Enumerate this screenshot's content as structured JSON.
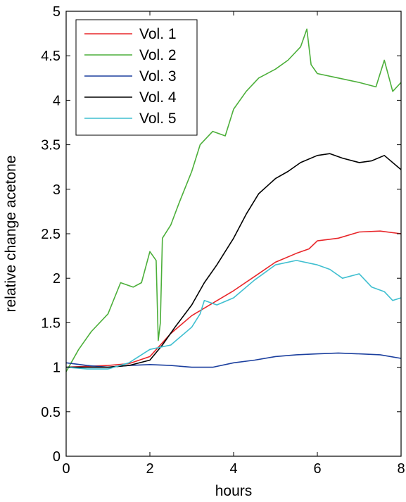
{
  "chart_data": {
    "type": "line",
    "title": "",
    "xlabel": "hours",
    "ylabel": "relative change acetone",
    "xlim": [
      0,
      8
    ],
    "ylim": [
      0,
      5
    ],
    "xticks": [
      0,
      2,
      4,
      6,
      8
    ],
    "yticks": [
      0,
      0.5,
      1,
      1.5,
      2,
      2.5,
      3,
      3.5,
      4,
      4.5,
      5
    ],
    "grid": false,
    "legend_position": "top-left",
    "series": [
      {
        "name": "Vol. 1",
        "color": "#e8262a",
        "x": [
          0,
          0.5,
          1.0,
          1.5,
          2.0,
          2.5,
          3.0,
          3.5,
          4.0,
          4.5,
          5.0,
          5.5,
          5.8,
          6.0,
          6.5,
          7.0,
          7.5,
          8.0
        ],
        "y": [
          1.0,
          1.01,
          1.02,
          1.04,
          1.12,
          1.38,
          1.58,
          1.72,
          1.86,
          2.02,
          2.18,
          2.28,
          2.33,
          2.42,
          2.45,
          2.52,
          2.53,
          2.5
        ]
      },
      {
        "name": "Vol. 2",
        "color": "#4caf3a",
        "x": [
          0,
          0.3,
          0.6,
          1.0,
          1.3,
          1.6,
          1.8,
          2.0,
          2.15,
          2.2,
          2.25,
          2.3,
          2.5,
          2.7,
          3.0,
          3.2,
          3.5,
          3.8,
          4.0,
          4.3,
          4.6,
          5.0,
          5.3,
          5.6,
          5.75,
          5.85,
          6.0,
          6.5,
          7.0,
          7.4,
          7.6,
          7.8,
          8.0
        ],
        "y": [
          0.95,
          1.2,
          1.4,
          1.6,
          1.95,
          1.9,
          1.95,
          2.3,
          2.2,
          1.3,
          1.5,
          2.45,
          2.6,
          2.85,
          3.2,
          3.5,
          3.65,
          3.6,
          3.9,
          4.1,
          4.25,
          4.35,
          4.45,
          4.6,
          4.8,
          4.4,
          4.3,
          4.25,
          4.2,
          4.15,
          4.45,
          4.1,
          4.2
        ]
      },
      {
        "name": "Vol. 3",
        "color": "#1b3f9e",
        "x": [
          0,
          0.5,
          1.0,
          1.5,
          2.0,
          2.5,
          3.0,
          3.5,
          4.0,
          4.5,
          5.0,
          5.5,
          6.0,
          6.5,
          7.0,
          7.5,
          8.0
        ],
        "y": [
          1.05,
          1.02,
          1.0,
          1.02,
          1.03,
          1.02,
          1.0,
          1.0,
          1.05,
          1.08,
          1.12,
          1.14,
          1.15,
          1.16,
          1.15,
          1.14,
          1.1
        ]
      },
      {
        "name": "Vol. 4",
        "color": "#000000",
        "x": [
          0,
          0.5,
          1.0,
          1.5,
          2.0,
          2.3,
          2.6,
          3.0,
          3.3,
          3.6,
          4.0,
          4.3,
          4.6,
          5.0,
          5.3,
          5.6,
          6.0,
          6.3,
          6.6,
          7.0,
          7.3,
          7.6,
          8.0
        ],
        "y": [
          1.0,
          1.0,
          1.0,
          1.02,
          1.08,
          1.25,
          1.45,
          1.7,
          1.95,
          2.15,
          2.45,
          2.72,
          2.95,
          3.12,
          3.2,
          3.3,
          3.38,
          3.4,
          3.35,
          3.3,
          3.32,
          3.38,
          3.22
        ]
      },
      {
        "name": "Vol. 5",
        "color": "#3fbfd0",
        "x": [
          0,
          0.5,
          1.0,
          1.5,
          2.0,
          2.5,
          3.0,
          3.2,
          3.3,
          3.6,
          4.0,
          4.5,
          5.0,
          5.5,
          6.0,
          6.3,
          6.6,
          7.0,
          7.3,
          7.6,
          7.8,
          8.0
        ],
        "y": [
          1.0,
          0.98,
          0.98,
          1.05,
          1.2,
          1.25,
          1.45,
          1.6,
          1.75,
          1.7,
          1.78,
          1.98,
          2.15,
          2.2,
          2.15,
          2.1,
          2.0,
          2.05,
          1.9,
          1.85,
          1.75,
          1.78
        ]
      }
    ]
  }
}
